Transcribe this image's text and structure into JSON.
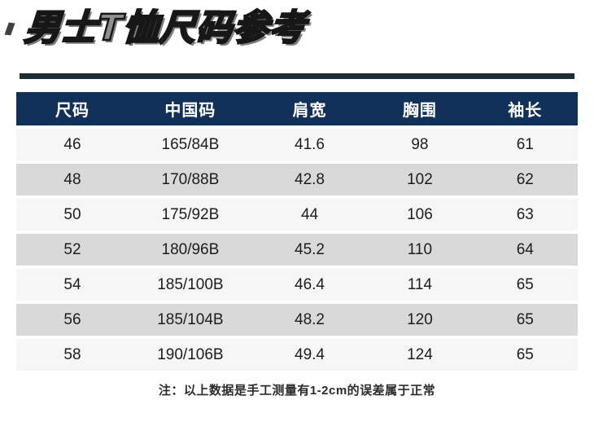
{
  "title": "男士T恤尺码参考",
  "note": "注：以上数据是手工测量有1-2cm的误差属于正常",
  "colors": {
    "header_bg": "#113158",
    "header_text": "#ffffff",
    "row_light": "#f6f6f7",
    "row_dark": "#d9d9d9",
    "divider": "#1c2d36",
    "title_fill": "#909090",
    "title_outline": "#171717",
    "body_text": "#1d1d1d"
  },
  "chart_data": {
    "type": "table",
    "title": "男士T恤尺码参考",
    "columns": [
      "尺码",
      "中国码",
      "肩宽",
      "胸围",
      "袖长"
    ],
    "rows": [
      [
        "46",
        "165/84B",
        "41.6",
        "98",
        "61"
      ],
      [
        "48",
        "170/88B",
        "42.8",
        "102",
        "62"
      ],
      [
        "50",
        "175/92B",
        "44",
        "106",
        "63"
      ],
      [
        "52",
        "180/96B",
        "45.2",
        "110",
        "64"
      ],
      [
        "54",
        "185/100B",
        "46.4",
        "114",
        "65"
      ],
      [
        "56",
        "185/104B",
        "48.2",
        "120",
        "65"
      ],
      [
        "58",
        "190/106B",
        "49.4",
        "124",
        "65"
      ]
    ],
    "note": "注：以上数据是手工测量有1-2cm的误差属于正常",
    "layout": {
      "zebra_striping": true,
      "header_position": "top"
    }
  }
}
